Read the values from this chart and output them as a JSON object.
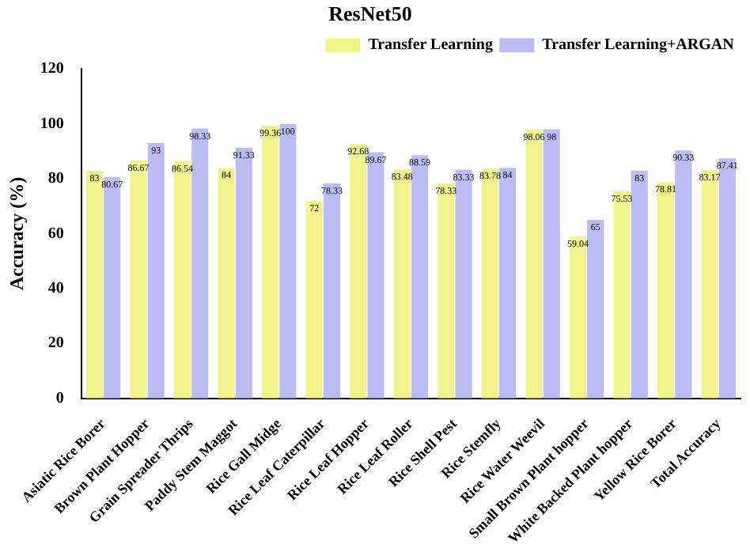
{
  "chart_data": {
    "type": "bar",
    "title": "ResNet50",
    "ylabel": "Accuracy (%)",
    "categories": [
      "Asiatic Rice Borer",
      "Brown Plant Hopper",
      "Grain Spreader Thrips",
      "Paddy Stem Maggot",
      "Rice Gall Midge",
      "Rice Leaf Caterpillar",
      "Rice Leaf Hopper",
      "Rice Leaf Roller",
      "Rice Shell Pest",
      "Rice Stemfly",
      "Rice Water Weevil",
      "Small Brown Plant hopper",
      "White Backed Plant hopper",
      "Yellow Rice Borer",
      "Total Accuracy"
    ],
    "series": [
      {
        "name": "Transfer Learning",
        "color": "#f3f38c",
        "values": [
          83,
          86.67,
          86.54,
          84,
          99.36,
          72,
          92.68,
          83.48,
          78.33,
          83.78,
          98.06,
          59.04,
          75.53,
          78.81,
          83.17
        ]
      },
      {
        "name": "Transfer Learning+ARGAN",
        "color": "#bcbcf4",
        "values": [
          80.67,
          93,
          98.33,
          91.33,
          100,
          78.33,
          89.67,
          88.59,
          83.33,
          84,
          98,
          65,
          83,
          90.33,
          87.41
        ]
      }
    ],
    "ylim": [
      0,
      120
    ],
    "yticks": [
      0,
      20,
      40,
      60,
      80,
      100,
      120
    ],
    "grid": false,
    "legend": "top right",
    "data_labels": true
  }
}
